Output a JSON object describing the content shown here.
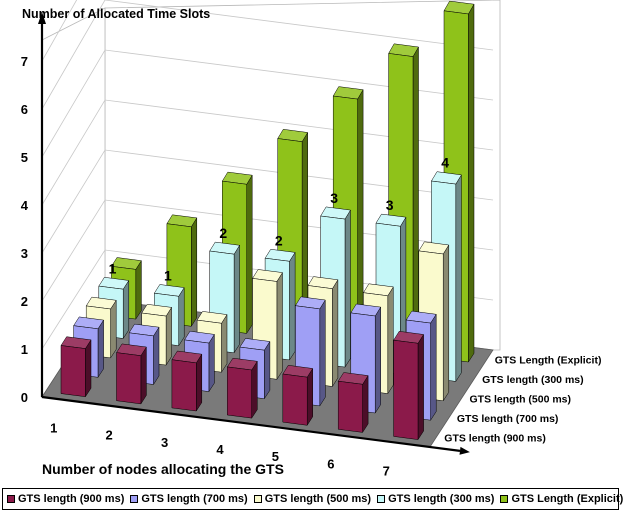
{
  "chart_data": {
    "type": "bar",
    "title": "",
    "ylabel": "Number of Allocated Time Slots",
    "xlabel": "Number of nodes allocating the GTS",
    "categories": [
      "1",
      "2",
      "3",
      "4",
      "5",
      "6",
      "7"
    ],
    "ylim": [
      0,
      7
    ],
    "yticks": [
      "0",
      "1",
      "2",
      "3",
      "4",
      "5",
      "6",
      "7"
    ],
    "series": [
      {
        "name": "GTS length (900 ms)",
        "color": "#8b1a4a",
        "values": [
          1,
          1,
          1,
          1,
          1,
          1,
          2
        ]
      },
      {
        "name": "GTS length (700 ms)",
        "color": "#9f9ff5",
        "values": [
          1,
          1,
          1,
          1,
          2,
          2,
          2
        ]
      },
      {
        "name": "GTS length (500 ms)",
        "color": "#fafacd",
        "values": [
          1,
          1,
          1,
          2,
          2,
          2,
          3
        ]
      },
      {
        "name": "GTS length (300 ms)",
        "color": "#c5f7f7",
        "values": [
          1,
          1,
          2,
          2,
          3,
          3,
          4
        ],
        "labels": [
          "1",
          "1",
          "2",
          "2",
          "3",
          "3",
          "4"
        ]
      },
      {
        "name": "GTS Length (Explicit)",
        "color": "#8fc21a",
        "values": [
          1,
          2,
          3,
          4,
          5,
          6,
          7
        ]
      }
    ],
    "depth_axis_labels": [
      "GTS Length (Explicit)",
      "GTS length (300 ms)",
      "GTS length (500 ms)",
      "GTS length (700 ms)",
      "GTS length (900 ms)"
    ],
    "grid": true,
    "legend_position": "bottom"
  }
}
